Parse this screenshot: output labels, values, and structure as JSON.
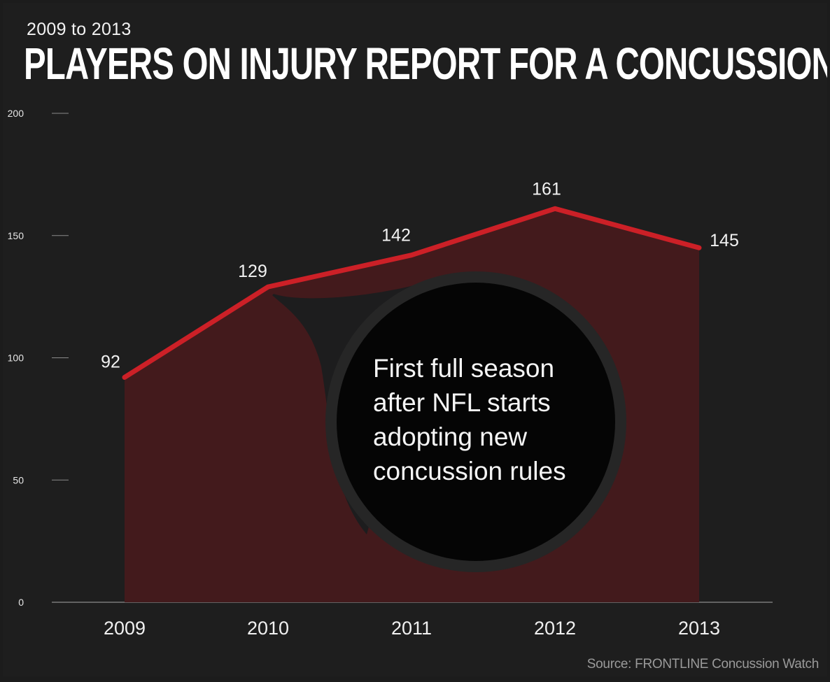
{
  "header": {
    "subtitle": "2009 to 2013",
    "title": "PLAYERS ON INJURY REPORT FOR A CONCUSSION"
  },
  "annotation": {
    "text_lines": [
      "First full season",
      "after NFL starts",
      "adopting new",
      "concussion rules"
    ],
    "points_to": "2010"
  },
  "source": "Source: FRONTLINE Concussion Watch",
  "colors": {
    "background": "#1e1e1e",
    "line": "#cc2027",
    "area": "#431a1c",
    "annotation_circle": "#050505",
    "annotation_ring": "#262626"
  },
  "chart_data": {
    "type": "area",
    "title": "PLAYERS ON INJURY REPORT FOR A CONCUSSION",
    "subtitle": "2009 to 2013",
    "categories": [
      "2009",
      "2010",
      "2011",
      "2012",
      "2013"
    ],
    "series": [
      {
        "values": [
          92,
          129,
          142,
          161,
          145
        ]
      }
    ],
    "data_labels": [
      "92",
      "129",
      "142",
      "161",
      "145"
    ],
    "y_ticks": [
      0,
      50,
      100,
      150,
      200
    ],
    "ylim": [
      0,
      200
    ],
    "xlabel": "",
    "ylabel": "",
    "grid": false,
    "legend": "none"
  }
}
